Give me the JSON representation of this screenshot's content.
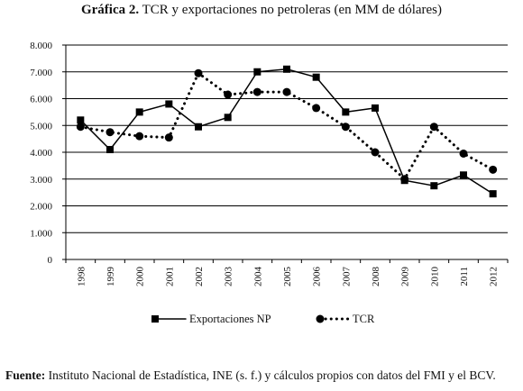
{
  "title_prefix": "Gráfica 2.",
  "title_text": "TCR y exportaciones no petroleras (en MM de dólares)",
  "source_label": "Fuente:",
  "source_text": "Instituto Nacional de Estadística, INE (s. f.) y cálculos propios con datos del FMI y el BCV.",
  "chart_data": {
    "type": "line",
    "x": [
      "1998",
      "1999",
      "2000",
      "2001",
      "2002",
      "2003",
      "2004",
      "2005",
      "2006",
      "2007",
      "2008",
      "2009",
      "2010",
      "2011",
      "2012"
    ],
    "ylim": [
      0,
      8000
    ],
    "ytick_labels": [
      "0",
      "1.000",
      "2.000",
      "3.000",
      "4.000",
      "5.000",
      "6.000",
      "7.000",
      "8.000"
    ],
    "ytick_values": [
      0,
      1000,
      2000,
      3000,
      4000,
      5000,
      6000,
      7000,
      8000
    ],
    "grid": true,
    "legend_position": "bottom",
    "series": [
      {
        "name": "Exportaciones NP",
        "style": "solid",
        "marker": "square",
        "color": "#000000",
        "values": [
          5200,
          4100,
          5500,
          5800,
          4950,
          5300,
          7000,
          7100,
          6800,
          5500,
          5650,
          2950,
          2750,
          3150,
          2450
        ]
      },
      {
        "name": "TCR",
        "style": "dotted",
        "marker": "circle",
        "color": "#000000",
        "values": [
          4950,
          4750,
          4600,
          4550,
          6950,
          6150,
          6250,
          6250,
          5650,
          4950,
          4000,
          3000,
          4950,
          3950,
          3350
        ]
      }
    ]
  }
}
